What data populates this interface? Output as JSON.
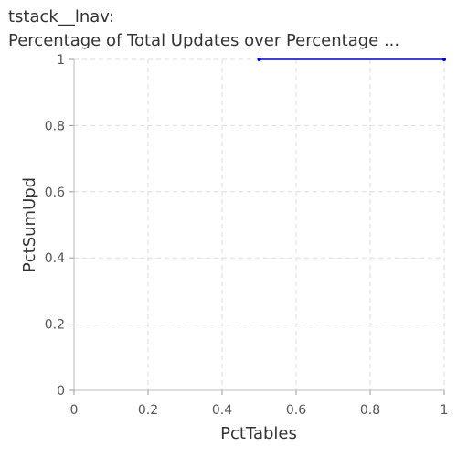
{
  "chart_data": {
    "type": "line",
    "title": "tstack__lnav:",
    "subtitle": "Percentage of Total Updates over Percentage ...",
    "xlabel": "PctTables",
    "ylabel": "PctSumUpd",
    "xlim": [
      0,
      1
    ],
    "ylim": [
      0,
      1
    ],
    "x_ticks": [
      "0",
      "0.2",
      "0.4",
      "0.6",
      "0.8",
      "1"
    ],
    "y_ticks": [
      "0",
      "0.2",
      "0.4",
      "0.6",
      "0.8",
      "1"
    ],
    "grid": true,
    "series": [
      {
        "x": [
          0.5,
          1.0
        ],
        "y": [
          1.0,
          1.0
        ],
        "color": "#0000cc"
      }
    ]
  }
}
